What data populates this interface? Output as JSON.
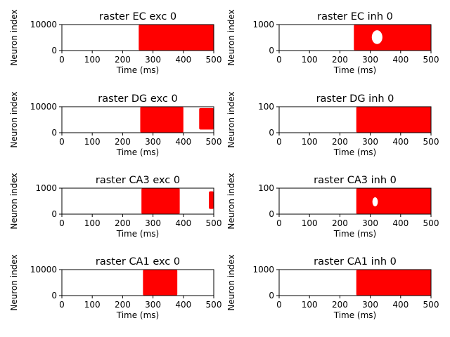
{
  "spike_color": "#ff0000",
  "chart_data": [
    {
      "type": "scatter",
      "title": "raster EC exc 0",
      "xlabel": "Time (ms)",
      "ylabel": "Neuron index",
      "xlim": [
        0,
        500
      ],
      "ylim": [
        0,
        10000
      ],
      "xticks": [
        "0",
        "100",
        "200",
        "300",
        "400",
        "500"
      ],
      "yticks": [
        "0",
        "10000"
      ],
      "spike_blocks": [
        {
          "t_start": 253,
          "t_end": 500,
          "n_start": 0,
          "n_end": 10000
        }
      ],
      "gaps": []
    },
    {
      "type": "scatter",
      "title": "raster EC inh 0",
      "xlabel": "Time (ms)",
      "ylabel": "Neuron index",
      "xlim": [
        0,
        500
      ],
      "ylim": [
        0,
        1000
      ],
      "xticks": [
        "0",
        "100",
        "200",
        "300",
        "400",
        "500"
      ],
      "yticks": [
        "0",
        "1000"
      ],
      "spike_blocks": [
        {
          "t_start": 246,
          "t_end": 500,
          "n_start": 0,
          "n_end": 1000
        }
      ],
      "gaps": [
        {
          "t_start": 305,
          "t_end": 340,
          "n_start": 250,
          "n_end": 780
        }
      ]
    },
    {
      "type": "scatter",
      "title": "raster DG exc 0",
      "xlabel": "Time (ms)",
      "ylabel": "Neuron index",
      "xlim": [
        0,
        500
      ],
      "ylim": [
        0,
        10000
      ],
      "xticks": [
        "0",
        "100",
        "200",
        "300",
        "400",
        "500"
      ],
      "yticks": [
        "0",
        "10000"
      ],
      "spike_blocks": [
        {
          "t_start": 258,
          "t_end": 400,
          "n_start": 0,
          "n_end": 10000
        },
        {
          "t_start": 452,
          "t_end": 500,
          "n_start": 1200,
          "n_end": 9500
        }
      ],
      "gaps": []
    },
    {
      "type": "scatter",
      "title": "raster DG inh 0",
      "xlabel": "Time (ms)",
      "ylabel": "Neuron index",
      "xlim": [
        0,
        500
      ],
      "ylim": [
        0,
        100
      ],
      "xticks": [
        "0",
        "100",
        "200",
        "300",
        "400",
        "500"
      ],
      "yticks": [
        "0",
        "100"
      ],
      "spike_blocks": [
        {
          "t_start": 254,
          "t_end": 500,
          "n_start": 0,
          "n_end": 100
        }
      ],
      "gaps": []
    },
    {
      "type": "scatter",
      "title": "raster CA3 exc 0",
      "xlabel": "Time (ms)",
      "ylabel": "Neuron index",
      "xlim": [
        0,
        500
      ],
      "ylim": [
        0,
        1000
      ],
      "xticks": [
        "0",
        "100",
        "200",
        "300",
        "400",
        "500"
      ],
      "yticks": [
        "0",
        "1000"
      ],
      "spike_blocks": [
        {
          "t_start": 262,
          "t_end": 388,
          "n_start": 0,
          "n_end": 1000
        },
        {
          "t_start": 484,
          "t_end": 500,
          "n_start": 200,
          "n_end": 880
        }
      ],
      "gaps": []
    },
    {
      "type": "scatter",
      "title": "raster CA3 inh 0",
      "xlabel": "Time (ms)",
      "ylabel": "Neuron index",
      "xlim": [
        0,
        500
      ],
      "ylim": [
        0,
        100
      ],
      "xticks": [
        "0",
        "100",
        "200",
        "300",
        "400",
        "500"
      ],
      "yticks": [
        "0",
        "100"
      ],
      "spike_blocks": [
        {
          "t_start": 254,
          "t_end": 500,
          "n_start": 0,
          "n_end": 100
        }
      ],
      "gaps": [
        {
          "t_start": 307,
          "t_end": 325,
          "n_start": 30,
          "n_end": 65
        }
      ]
    },
    {
      "type": "scatter",
      "title": "raster CA1 exc 0",
      "xlabel": "Time (ms)",
      "ylabel": "Neuron index",
      "xlim": [
        0,
        500
      ],
      "ylim": [
        0,
        10000
      ],
      "xticks": [
        "0",
        "100",
        "200",
        "300",
        "400",
        "500"
      ],
      "yticks": [
        "0",
        "10000"
      ],
      "spike_blocks": [
        {
          "t_start": 267,
          "t_end": 380,
          "n_start": 0,
          "n_end": 10000
        }
      ],
      "gaps": []
    },
    {
      "type": "scatter",
      "title": "raster CA1 inh 0",
      "xlabel": "Time (ms)",
      "ylabel": "Neuron index",
      "xlim": [
        0,
        500
      ],
      "ylim": [
        0,
        1000
      ],
      "xticks": [
        "0",
        "100",
        "200",
        "300",
        "400",
        "500"
      ],
      "yticks": [
        "0",
        "1000"
      ],
      "spike_blocks": [
        {
          "t_start": 254,
          "t_end": 500,
          "n_start": 0,
          "n_end": 1000
        }
      ],
      "gaps": []
    }
  ]
}
